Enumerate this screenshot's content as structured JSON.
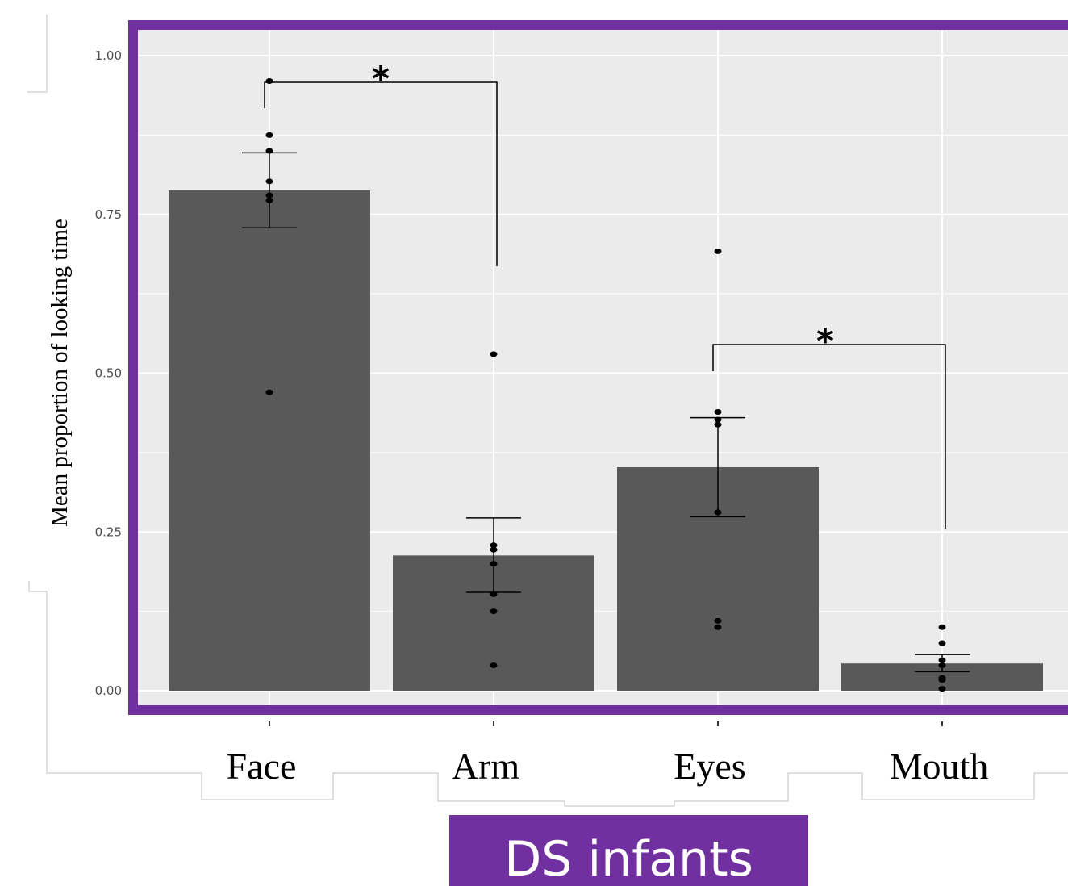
{
  "chart_data": {
    "type": "bar",
    "title": "",
    "xlabel": "",
    "ylabel": "Mean  proportion of looking time",
    "ylim": [
      0,
      1.05
    ],
    "yticks": [
      0,
      0.25,
      0.5,
      0.75,
      1.0
    ],
    "ytick_labels": [
      "0.00",
      "0.25",
      "0.50",
      "0.75",
      "1.00"
    ],
    "grid": true,
    "categories": [
      "Face",
      "Arm",
      "Eyes",
      "Mouth"
    ],
    "values": [
      0.788,
      0.213,
      0.352,
      0.043
    ],
    "error_bars": [
      {
        "low": 0.729,
        "high": 0.847
      },
      {
        "low": 0.155,
        "high": 0.272
      },
      {
        "low": 0.274,
        "high": 0.43
      },
      {
        "low": 0.03,
        "high": 0.057
      }
    ],
    "points": [
      [
        0.96,
        0.875,
        0.85,
        0.802,
        0.78,
        0.772,
        0.47
      ],
      [
        0.53,
        0.229,
        0.222,
        0.2,
        0.152,
        0.125,
        0.04
      ],
      [
        0.692,
        0.439,
        0.427,
        0.419,
        0.281,
        0.11,
        0.1
      ],
      [
        0.1,
        0.075,
        0.048,
        0.04,
        0.02,
        0.017,
        0.003
      ]
    ],
    "significance": [
      {
        "from": 0,
        "to": 1,
        "label": "*"
      },
      {
        "from": 2,
        "to": 3,
        "label": "*"
      }
    ],
    "colors": {
      "bar": "#595959",
      "panel": "#ebebeb",
      "grid": "#ffffff",
      "frame": "#7030a0",
      "point": "#000000"
    }
  },
  "footer": {
    "label": "DS infants"
  }
}
